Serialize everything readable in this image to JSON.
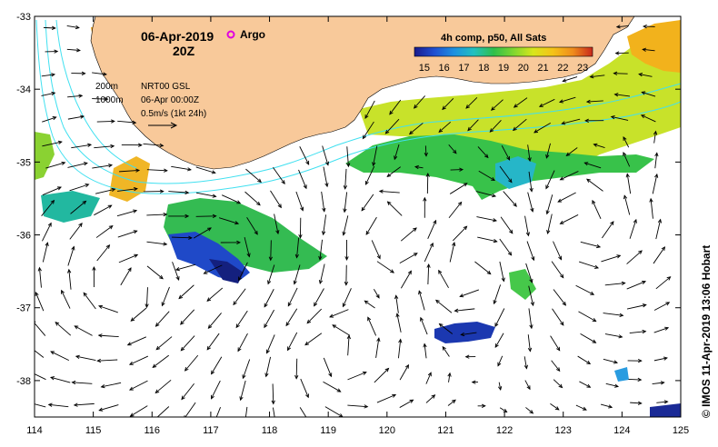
{
  "header": {
    "date": "06-Apr-2019",
    "time": "20Z",
    "argo_label": "Argo",
    "argo_color": "#e000e0"
  },
  "legend": {
    "isobath_200": "200m",
    "isobath_1000": "1000m",
    "product": "NRT00 GSL",
    "product_time": "06-Apr 00:00Z",
    "scale": "0.5m/s (1kt 24h)"
  },
  "colorbar": {
    "title": "4h comp, p50, All Sats",
    "ticks": [
      "15",
      "16",
      "17",
      "18",
      "19",
      "20",
      "21",
      "22",
      "23"
    ],
    "min": 14.5,
    "max": 23.5,
    "colors": [
      "#1a1a8c",
      "#1f4fd1",
      "#1e90e0",
      "#22c0c0",
      "#2fbf4a",
      "#7fd630",
      "#d8e61c",
      "#f5c218",
      "#ef8c1c",
      "#c8281c"
    ]
  },
  "axes": {
    "lon_ticks": [
      "114",
      "115",
      "116",
      "117",
      "118",
      "119",
      "120",
      "121",
      "122",
      "123",
      "124",
      "125"
    ],
    "lat_ticks": [
      "-33",
      "-34",
      "-35",
      "-36",
      "-37",
      "-38"
    ],
    "lon_range": [
      114,
      125
    ],
    "lat_range": [
      -38.5,
      -33
    ]
  },
  "colors": {
    "land": "#f8c99a",
    "isobath": "#40e0f0",
    "ocean": "#ffffff"
  },
  "credit": "© IMOS 11-Apr-2019 13:06 Hobart"
}
